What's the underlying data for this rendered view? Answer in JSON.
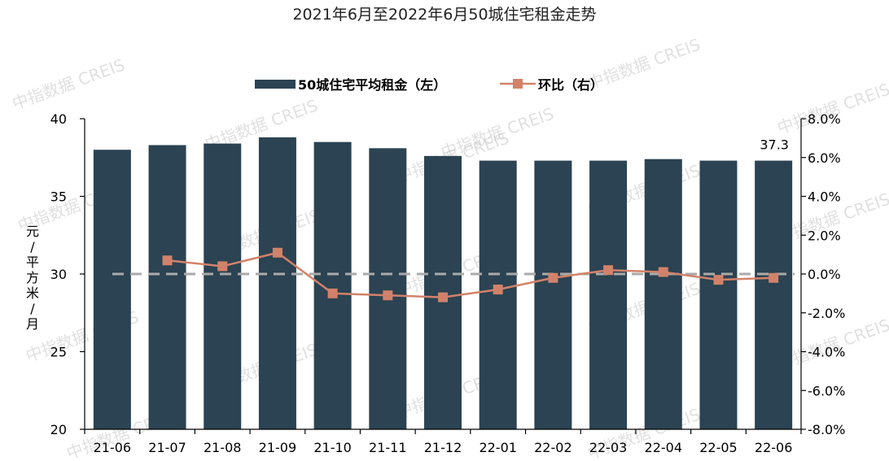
{
  "title": "2021年6月至2022年6月50城住宅租金走势",
  "watermark": "中指数据 CREIS",
  "colors": {
    "bar": "#2b4352",
    "line": "#d2826a",
    "zero_line": "#aaaaaa"
  },
  "chart_data": {
    "type": "bar",
    "title": "2021年6月至2022年6月50城住宅租金走势",
    "categories": [
      "21-06",
      "21-07",
      "21-08",
      "21-09",
      "21-10",
      "21-11",
      "21-12",
      "22-01",
      "22-02",
      "22-03",
      "22-04",
      "22-05",
      "22-06"
    ],
    "series": [
      {
        "name": "50城住宅平均租金（左）",
        "type": "bar",
        "axis": "left",
        "values": [
          38.0,
          38.3,
          38.4,
          38.8,
          38.5,
          38.1,
          37.6,
          37.3,
          37.3,
          37.3,
          37.4,
          37.3,
          37.3
        ]
      },
      {
        "name": "环比（右）",
        "type": "line",
        "axis": "right",
        "values": [
          null,
          0.7,
          0.4,
          1.1,
          -1.0,
          -1.1,
          -1.2,
          -0.8,
          -0.2,
          0.2,
          0.1,
          -0.3,
          -0.2
        ]
      }
    ],
    "ylabel": "元/平方米/月",
    "ylim": [
      20,
      40
    ],
    "yticks": [
      "20",
      "25",
      "30",
      "35",
      "40"
    ],
    "y2lim": [
      -8,
      8
    ],
    "y2ticks": [
      "-8.0%",
      "-6.0%",
      "-4.0%",
      "-2.0%",
      "0.0%",
      "2.0%",
      "4.0%",
      "6.0%",
      "8.0%"
    ],
    "annotations": [
      {
        "category": "22-06",
        "text": "37.3"
      }
    ],
    "legend": "top-center",
    "grid": false
  }
}
